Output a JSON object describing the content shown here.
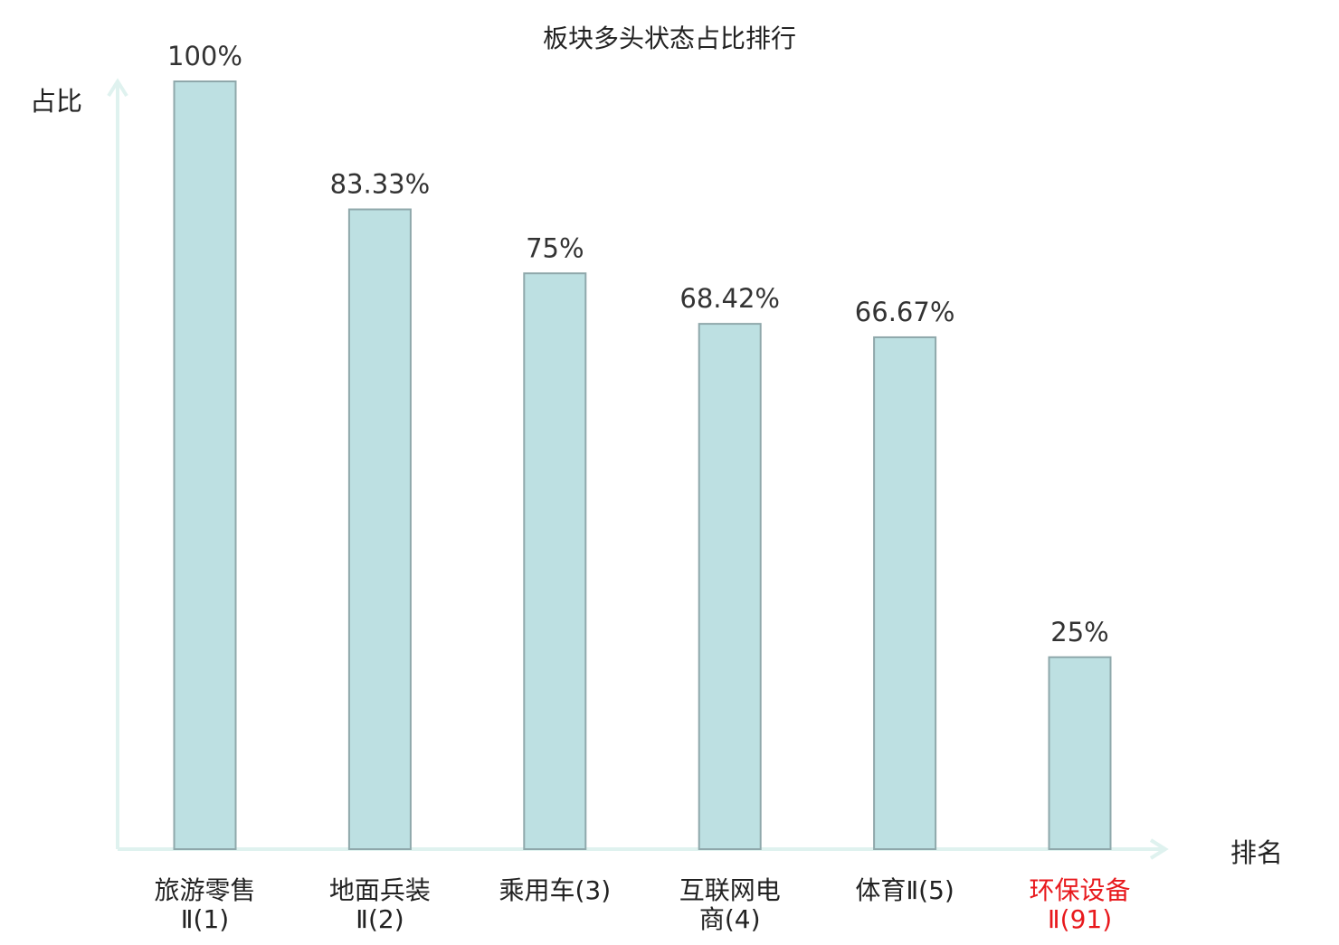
{
  "chart_data": {
    "type": "bar",
    "title": "板块多头状态占比排行",
    "xlabel": "排名",
    "ylabel": "占比",
    "ylim": [
      0,
      100
    ],
    "categories": [
      {
        "name_lines": [
          "旅游零售",
          "Ⅱ(1)"
        ],
        "highlight": false
      },
      {
        "name_lines": [
          "地面兵装",
          "Ⅱ(2)"
        ],
        "highlight": false
      },
      {
        "name_lines": [
          "乘用车(3)"
        ],
        "highlight": false
      },
      {
        "name_lines": [
          "互联网电",
          "商(4)"
        ],
        "highlight": false
      },
      {
        "name_lines": [
          "体育Ⅱ(5)"
        ],
        "highlight": false
      },
      {
        "name_lines": [
          "环保设备",
          "Ⅱ(91)"
        ],
        "highlight": true
      }
    ],
    "values": [
      100,
      83.33,
      75,
      68.42,
      66.67,
      25
    ],
    "value_labels": [
      "100%",
      "83.33%",
      "75%",
      "68.42%",
      "66.67%",
      "25%"
    ],
    "grid": false,
    "legend": "none"
  },
  "colors": {
    "bar_fill": "#bde0e2",
    "bar_stroke": "#8fa8ab",
    "axis": "#dff2ef",
    "text": "#333333",
    "highlight": "#e8191d"
  }
}
